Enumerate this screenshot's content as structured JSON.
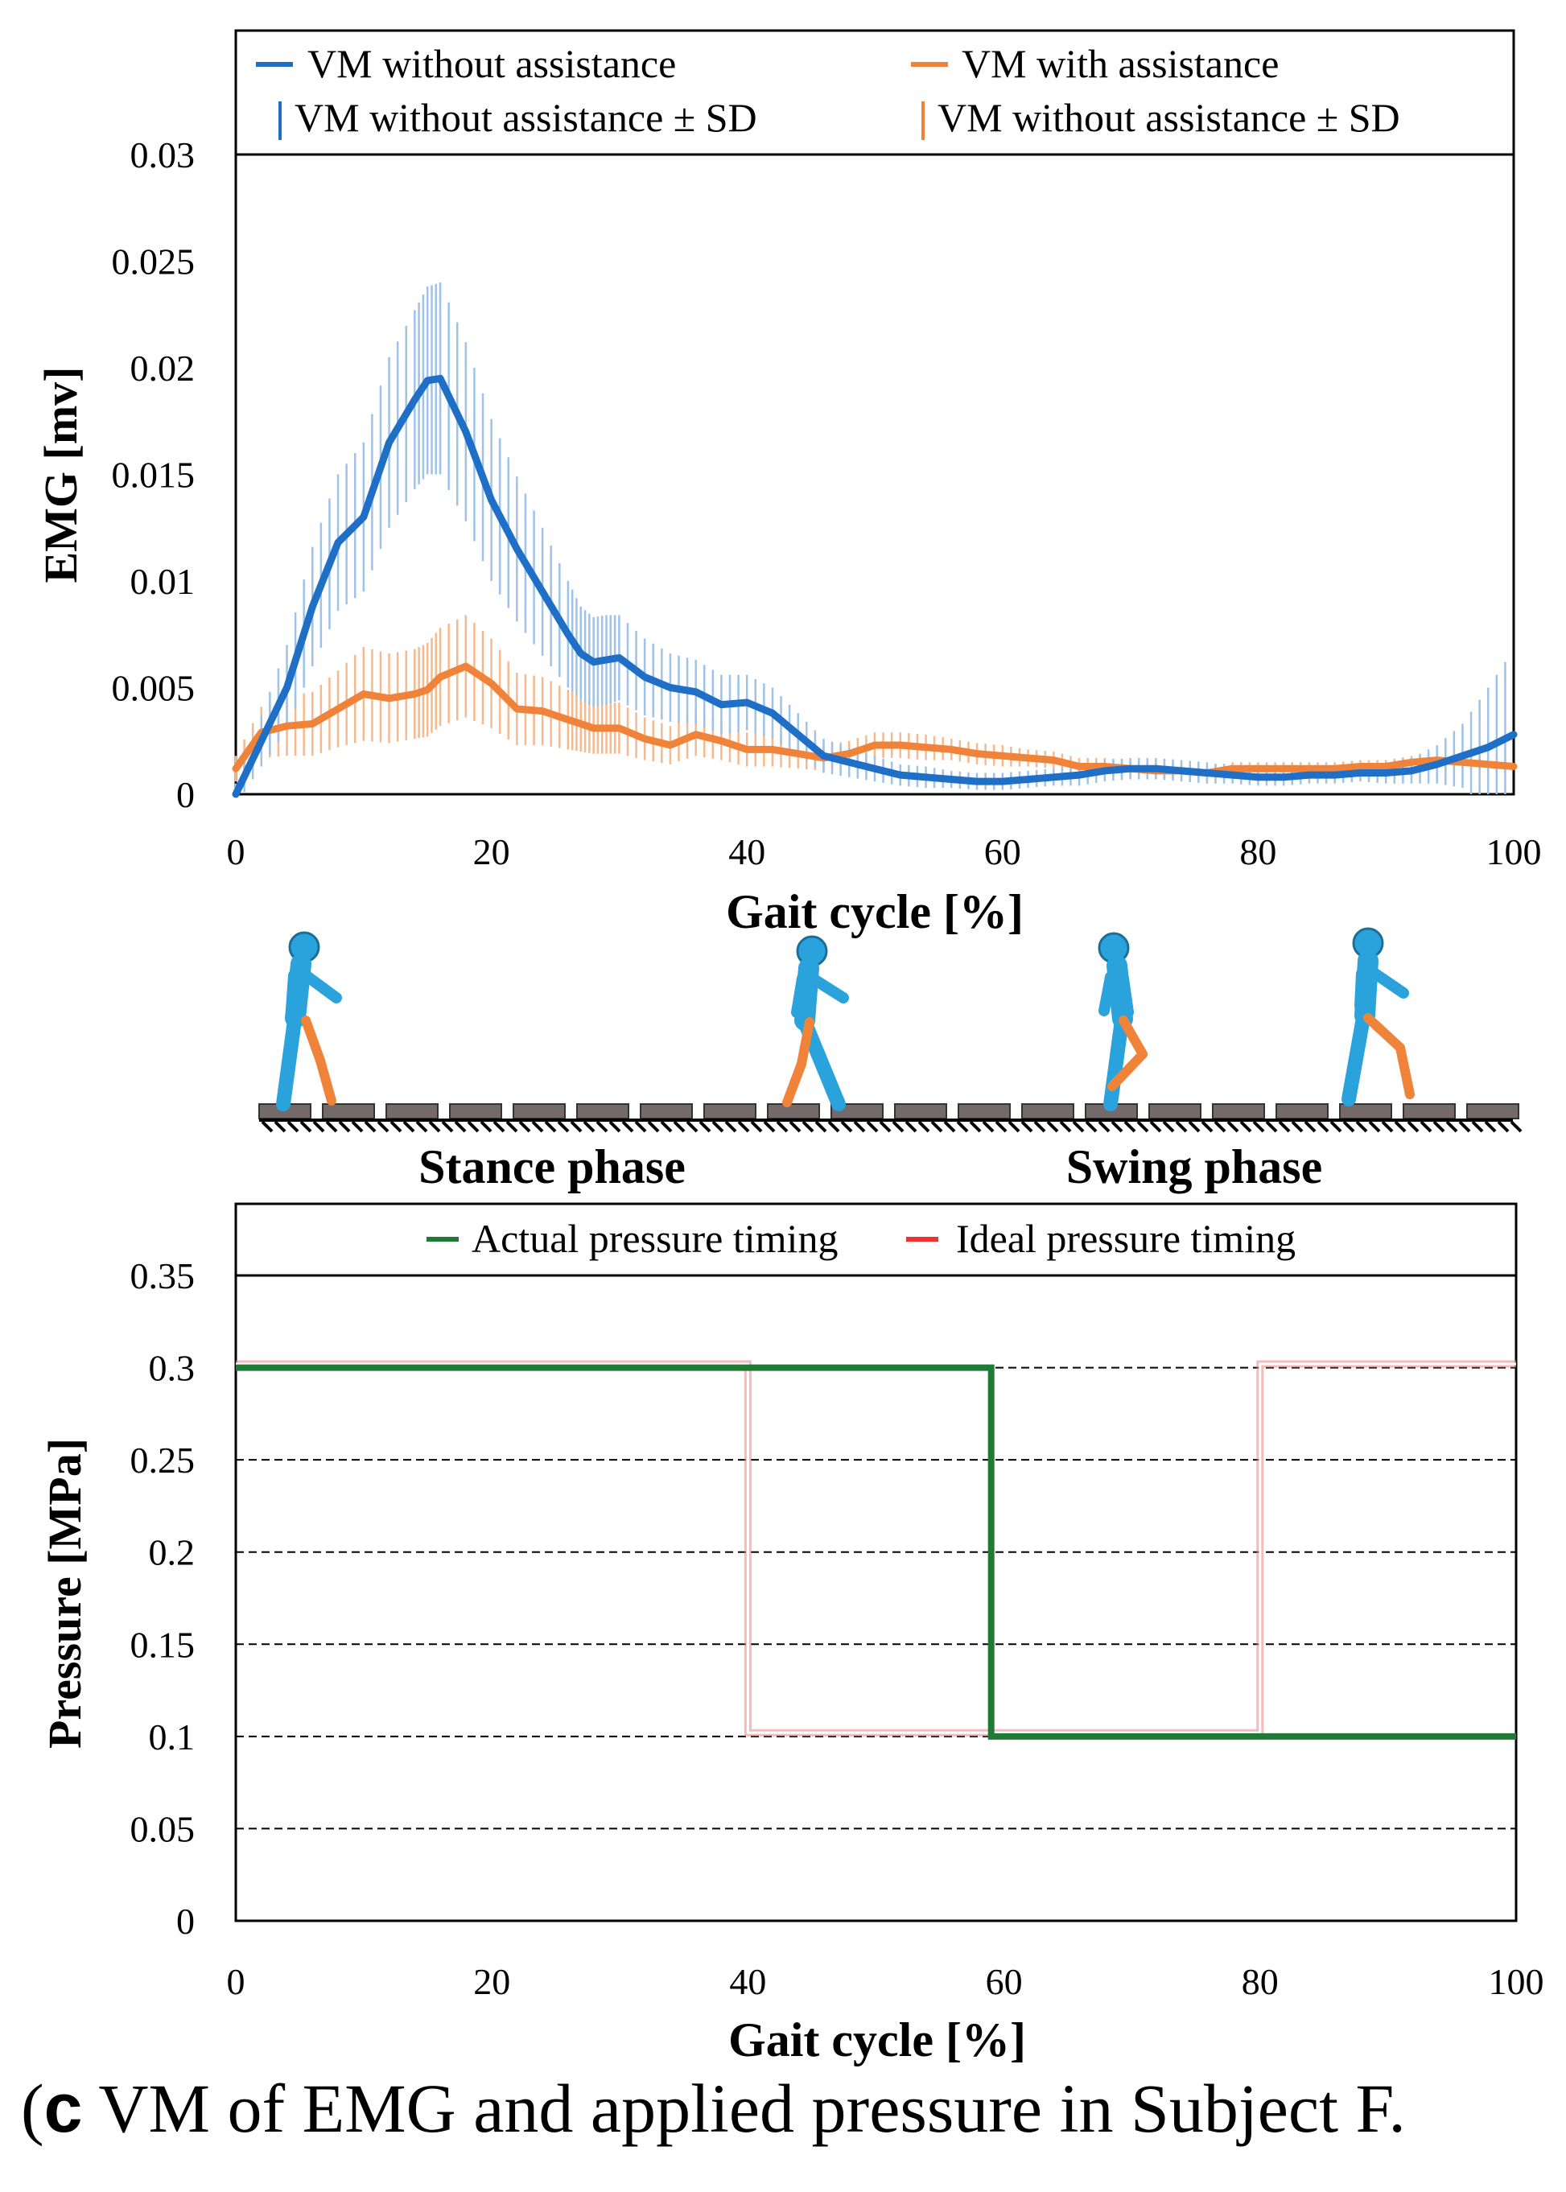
{
  "figure": {
    "caption_label": "c",
    "caption_text": " VM of EMG and applied pressure in Subject F."
  },
  "colors": {
    "vm_without": "#1f6fc7",
    "vm_with": "#f0833a",
    "vm_without_sd": "#9ec2e8",
    "vm_with_sd": "#f6b98d",
    "actual_pressure": "#1e7a34",
    "ideal_pressure": "#f08080",
    "figure_body": "#2aa3dc",
    "figure_leg": "#f0833a",
    "ground": "#756a6a"
  },
  "phases": {
    "stance_label": "Stance phase",
    "swing_label": "Swing phase"
  },
  "chart_data": [
    {
      "type": "line",
      "title": "",
      "xlabel": "Gait cycle [%]",
      "ylabel": "EMG [mv]",
      "xlim": [
        0,
        100
      ],
      "ylim": [
        0,
        0.03
      ],
      "xticks": [
        0,
        20,
        40,
        60,
        80,
        100
      ],
      "yticks": [
        0,
        0.005,
        0.01,
        0.015,
        0.02,
        0.025,
        0.03
      ],
      "xtick_labels": [
        "0",
        "20",
        "40",
        "60",
        "80",
        "100"
      ],
      "ytick_labels": [
        "0",
        "0.005",
        "0.01",
        "0.015",
        "0.02",
        "0.025",
        "0.03"
      ],
      "legend_position": "top",
      "legend": [
        "VM without assistance",
        "VM with assistance",
        "VM without assistance ± SD",
        "VM without assistance ± SD"
      ],
      "x": [
        0,
        2,
        4,
        6,
        8,
        10,
        12,
        14,
        15,
        16,
        18,
        20,
        22,
        24,
        26,
        27,
        28,
        29,
        30,
        32,
        34,
        36,
        38,
        40,
        42,
        44,
        46,
        48,
        50,
        52,
        54,
        56,
        58,
        60,
        62,
        64,
        66,
        68,
        70,
        72,
        74,
        76,
        78,
        80,
        82,
        84,
        86,
        88,
        90,
        92,
        94,
        96,
        98,
        100
      ],
      "series": [
        {
          "name": "VM without assistance",
          "values": [
            0,
            0.0025,
            0.005,
            0.0088,
            0.0118,
            0.013,
            0.0165,
            0.0185,
            0.0194,
            0.0195,
            0.017,
            0.0138,
            0.0115,
            0.0095,
            0.0075,
            0.0066,
            0.0062,
            0.0063,
            0.0064,
            0.0055,
            0.005,
            0.0048,
            0.0042,
            0.0043,
            0.0038,
            0.0028,
            0.0018,
            0.0015,
            0.0012,
            0.0009,
            0.0008,
            0.0007,
            0.0006,
            0.0006,
            0.0007,
            0.0008,
            0.0009,
            0.0011,
            0.0012,
            0.0012,
            0.0011,
            0.001,
            0.0009,
            0.0008,
            0.0008,
            0.0009,
            0.0009,
            0.001,
            0.001,
            0.0011,
            0.0014,
            0.0018,
            0.0022,
            0.0028
          ],
          "sd": [
            0.0005,
            0.0012,
            0.002,
            0.0028,
            0.0032,
            0.0035,
            0.004,
            0.0042,
            0.0044,
            0.0045,
            0.0042,
            0.0038,
            0.0034,
            0.003,
            0.0025,
            0.0022,
            0.0021,
            0.0021,
            0.002,
            0.0018,
            0.0016,
            0.0015,
            0.0014,
            0.0013,
            0.0012,
            0.001,
            0.0008,
            0.0007,
            0.0006,
            0.0005,
            0.0005,
            0.0004,
            0.0004,
            0.0004,
            0.0004,
            0.0004,
            0.0005,
            0.0005,
            0.0005,
            0.0005,
            0.0005,
            0.0005,
            0.0004,
            0.0004,
            0.0004,
            0.0004,
            0.0004,
            0.0004,
            0.0005,
            0.0006,
            0.0009,
            0.0015,
            0.0028,
            0.004
          ]
        },
        {
          "name": "VM with assistance",
          "values": [
            0.0012,
            0.0029,
            0.0032,
            0.0033,
            0.004,
            0.0047,
            0.0045,
            0.0047,
            0.0049,
            0.0055,
            0.006,
            0.0052,
            0.004,
            0.0039,
            0.0035,
            0.0033,
            0.0031,
            0.0031,
            0.0031,
            0.0026,
            0.0023,
            0.0028,
            0.0025,
            0.0021,
            0.0021,
            0.0019,
            0.0017,
            0.0019,
            0.0023,
            0.0023,
            0.0022,
            0.0021,
            0.0019,
            0.0018,
            0.0017,
            0.0016,
            0.0013,
            0.0013,
            0.0012,
            0.0011,
            0.0011,
            0.001,
            0.0012,
            0.0012,
            0.0012,
            0.0012,
            0.0012,
            0.0013,
            0.0013,
            0.0015,
            0.0016,
            0.0015,
            0.0014,
            0.0013
          ],
          "sd": [
            0.0006,
            0.0012,
            0.0014,
            0.0015,
            0.0018,
            0.0022,
            0.0021,
            0.0021,
            0.0022,
            0.0023,
            0.0024,
            0.0021,
            0.0017,
            0.0016,
            0.0014,
            0.0013,
            0.0012,
            0.0012,
            0.0012,
            0.001,
            0.0009,
            0.001,
            0.0009,
            0.0008,
            0.0008,
            0.0007,
            0.0006,
            0.0006,
            0.0006,
            0.0006,
            0.0006,
            0.0005,
            0.0005,
            0.0005,
            0.0004,
            0.0004,
            0.0004,
            0.0004,
            0.0004,
            0.0004,
            0.0003,
            0.0003,
            0.0003,
            0.0003,
            0.0003,
            0.0003,
            0.0003,
            0.0003,
            0.0003,
            0.0003,
            0.0003,
            0.0003,
            0.0003,
            0.0003
          ]
        }
      ]
    },
    {
      "type": "line",
      "title": "",
      "xlabel": "Gait cycle [%]",
      "ylabel": "Pressure [MPa]",
      "xlim": [
        0,
        100
      ],
      "ylim": [
        0,
        0.35
      ],
      "xticks": [
        0,
        20,
        40,
        60,
        80,
        100
      ],
      "yticks": [
        0,
        0.05,
        0.1,
        0.15,
        0.2,
        0.25,
        0.3,
        0.35
      ],
      "xtick_labels": [
        "0",
        "20",
        "40",
        "60",
        "80",
        "100"
      ],
      "ytick_labels": [
        "0",
        "0.05",
        "0.1",
        "0.15",
        "0.2",
        "0.25",
        "0.3",
        "0.35"
      ],
      "grid": "horizontal dashed",
      "legend_position": "top",
      "legend": [
        "Actual pressure timing",
        "Ideal pressure timing"
      ],
      "series": [
        {
          "name": "Actual pressure timing",
          "x": [
            0,
            59,
            59,
            100
          ],
          "values": [
            0.3,
            0.3,
            0.1,
            0.1
          ]
        },
        {
          "name": "Ideal pressure timing",
          "x": [
            0,
            40,
            40,
            80,
            80,
            100
          ],
          "values": [
            0.302,
            0.302,
            0.102,
            0.102,
            0.302,
            0.302
          ]
        }
      ]
    }
  ]
}
